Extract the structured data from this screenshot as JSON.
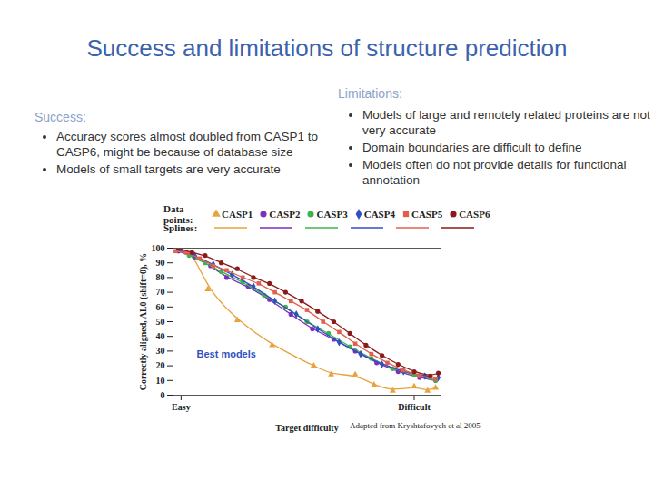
{
  "slide": {
    "title": "Success and limitations of structure prediction",
    "success": {
      "heading": "Success:",
      "bullets": [
        "Accuracy scores almost doubled from CASP1 to CASP6, might be because of database size",
        "Models of small targets are very accurate"
      ]
    },
    "limitations": {
      "heading": "Limitations:",
      "bullets": [
        "Models of large and remotely related proteins are not very accurate",
        "Domain boundaries are difficult to define",
        "Models often do not provide details for functional annotation"
      ]
    },
    "caption": "Adapted from Kryshtafovych et al 2005"
  },
  "chart_data": {
    "type": "scatter",
    "legend_points_label": "Data points:",
    "legend_splines_label": "Splines:",
    "annotation": "Best models",
    "x_label": "Target difficulty",
    "y_label": "Correctly aligned, AL0 (shift=0), %",
    "xlim": [
      0,
      100
    ],
    "xticks": [
      {
        "value": 3,
        "label": "Easy"
      },
      {
        "value": 90,
        "label": "Difficult"
      }
    ],
    "ylim": [
      0,
      100
    ],
    "yticks": [
      0,
      10,
      20,
      30,
      40,
      50,
      60,
      70,
      80,
      90,
      100
    ],
    "grid": false,
    "series": [
      {
        "name": "CASP1",
        "color": "#e8a33d",
        "marker": "triangle",
        "x": [
          2.4,
          7.8,
          13,
          24,
          37,
          52.5,
          59,
          68,
          75,
          82,
          90,
          95,
          98
        ],
        "values": [
          100,
          96,
          72,
          51,
          34,
          20,
          14,
          14,
          7,
          3,
          6,
          3,
          5
        ]
      },
      {
        "name": "CASP2",
        "color": "#7b2fbe",
        "marker": "circle",
        "x": [
          2,
          8,
          14,
          20,
          28,
          36,
          44,
          52,
          60,
          68,
          76,
          84,
          92,
          98
        ],
        "values": [
          98,
          94,
          88,
          80,
          74,
          65,
          55,
          45,
          38,
          30,
          22,
          16,
          12,
          10
        ]
      },
      {
        "name": "CASP3",
        "color": "#3cb44b",
        "marker": "circle",
        "x": [
          2,
          6,
          12,
          18,
          26,
          34,
          42,
          50,
          58,
          66,
          74,
          82,
          90,
          98
        ],
        "values": [
          100,
          95,
          90,
          84,
          77,
          68,
          60,
          50,
          42,
          33,
          25,
          18,
          14,
          10
        ]
      },
      {
        "name": "CASP4",
        "color": "#3050c0",
        "marker": "diamond",
        "x": [
          2,
          8,
          15,
          22,
          30,
          38,
          46,
          54,
          62,
          70,
          78,
          86,
          94,
          99
        ],
        "values": [
          99,
          95,
          89,
          82,
          74,
          64,
          55,
          45,
          36,
          28,
          21,
          16,
          13,
          12
        ]
      },
      {
        "name": "CASP5",
        "color": "#e06050",
        "marker": "square",
        "x": [
          1,
          5,
          10,
          15,
          20,
          26,
          32,
          38,
          44,
          50,
          56,
          62,
          68,
          74,
          80,
          86,
          92,
          98
        ],
        "values": [
          98,
          97,
          93,
          88,
          85,
          80,
          76,
          70,
          64,
          58,
          50,
          43,
          35,
          28,
          22,
          17,
          13,
          11
        ]
      },
      {
        "name": "CASP6",
        "color": "#8b1a1a",
        "marker": "circle",
        "x": [
          2,
          7,
          12,
          18,
          24,
          30,
          36,
          42,
          48,
          54,
          60,
          66,
          72,
          78,
          84,
          90,
          96,
          99
        ],
        "values": [
          100,
          97,
          95,
          90,
          86,
          80,
          76,
          70,
          64,
          57,
          50,
          42,
          34,
          27,
          21,
          16,
          13,
          15
        ]
      }
    ]
  }
}
